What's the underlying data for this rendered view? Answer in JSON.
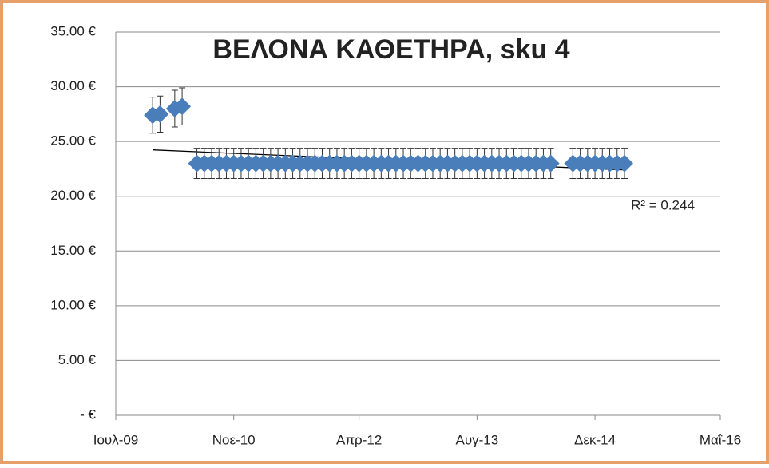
{
  "chart_data": {
    "type": "scatter",
    "title": "ΒΕΛΟΝΑ ΚΑΘΕΤΗΡΑ, sku 4",
    "series": [
      {
        "color": "#4a7ebb",
        "x": [
          "2009-12",
          "2010-01",
          "2010-03",
          "2010-04",
          "2010-06",
          "2010-07",
          "2010-08",
          "2010-09",
          "2010-10",
          "2010-11",
          "2010-12",
          "2011-01",
          "2011-02",
          "2011-03",
          "2011-04",
          "2011-05",
          "2011-06",
          "2011-07",
          "2011-08",
          "2011-09",
          "2011-10",
          "2011-11",
          "2011-12",
          "2012-01",
          "2012-02",
          "2012-03",
          "2012-04",
          "2012-05",
          "2012-06",
          "2012-07",
          "2012-08",
          "2012-09",
          "2012-10",
          "2012-11",
          "2012-12",
          "2013-01",
          "2013-02",
          "2013-03",
          "2013-04",
          "2013-05",
          "2013-06",
          "2013-07",
          "2013-08",
          "2013-09",
          "2013-10",
          "2013-11",
          "2013-12",
          "2014-01",
          "2014-02",
          "2014-03",
          "2014-04",
          "2014-05",
          "2014-06",
          "2014-09",
          "2014-10",
          "2014-11",
          "2014-12",
          "2015-01",
          "2015-02",
          "2015-03",
          "2015-04"
        ],
        "values": [
          27.4,
          27.5,
          28.0,
          28.2,
          23,
          23,
          23,
          23,
          23,
          23,
          23,
          23,
          23,
          23,
          23,
          23,
          23,
          23,
          23,
          23,
          23,
          23,
          23,
          23,
          23,
          23,
          23,
          23,
          23,
          23,
          23,
          23,
          23,
          23,
          23,
          23,
          23,
          23,
          23,
          23,
          23,
          23,
          23,
          23,
          23,
          23,
          23,
          23,
          23,
          23,
          23,
          23,
          23,
          23,
          23,
          23,
          23,
          23,
          23,
          23,
          23
        ],
        "error_percent": 6
      }
    ],
    "trendline": {
      "type": "linear",
      "color": "#000000",
      "label": "R² = 0.244"
    },
    "xlim": [
      "2009-07",
      "2016-05"
    ],
    "xticks": [
      {
        "value": "2009-07",
        "label": "Ιουλ-09"
      },
      {
        "value": "2010-11",
        "label": "Νοε-10"
      },
      {
        "value": "2012-04",
        "label": "Απρ-12"
      },
      {
        "value": "2013-08",
        "label": "Αυγ-13"
      },
      {
        "value": "2014-12",
        "label": "Δεκ-14"
      },
      {
        "value": "2016-05",
        "label": "Μαΐ-16"
      }
    ],
    "ylim": [
      0,
      35
    ],
    "yticks": [
      {
        "value": 0,
        "label": "-  €"
      },
      {
        "value": 5,
        "label": "5.00 €"
      },
      {
        "value": 10,
        "label": "10.00 €"
      },
      {
        "value": 15,
        "label": "15.00 €"
      },
      {
        "value": 20,
        "label": "20.00 €"
      },
      {
        "value": 25,
        "label": "25.00 €"
      },
      {
        "value": 30,
        "label": "30.00 €"
      },
      {
        "value": 35,
        "label": "35.00 €"
      }
    ],
    "grid": true
  }
}
